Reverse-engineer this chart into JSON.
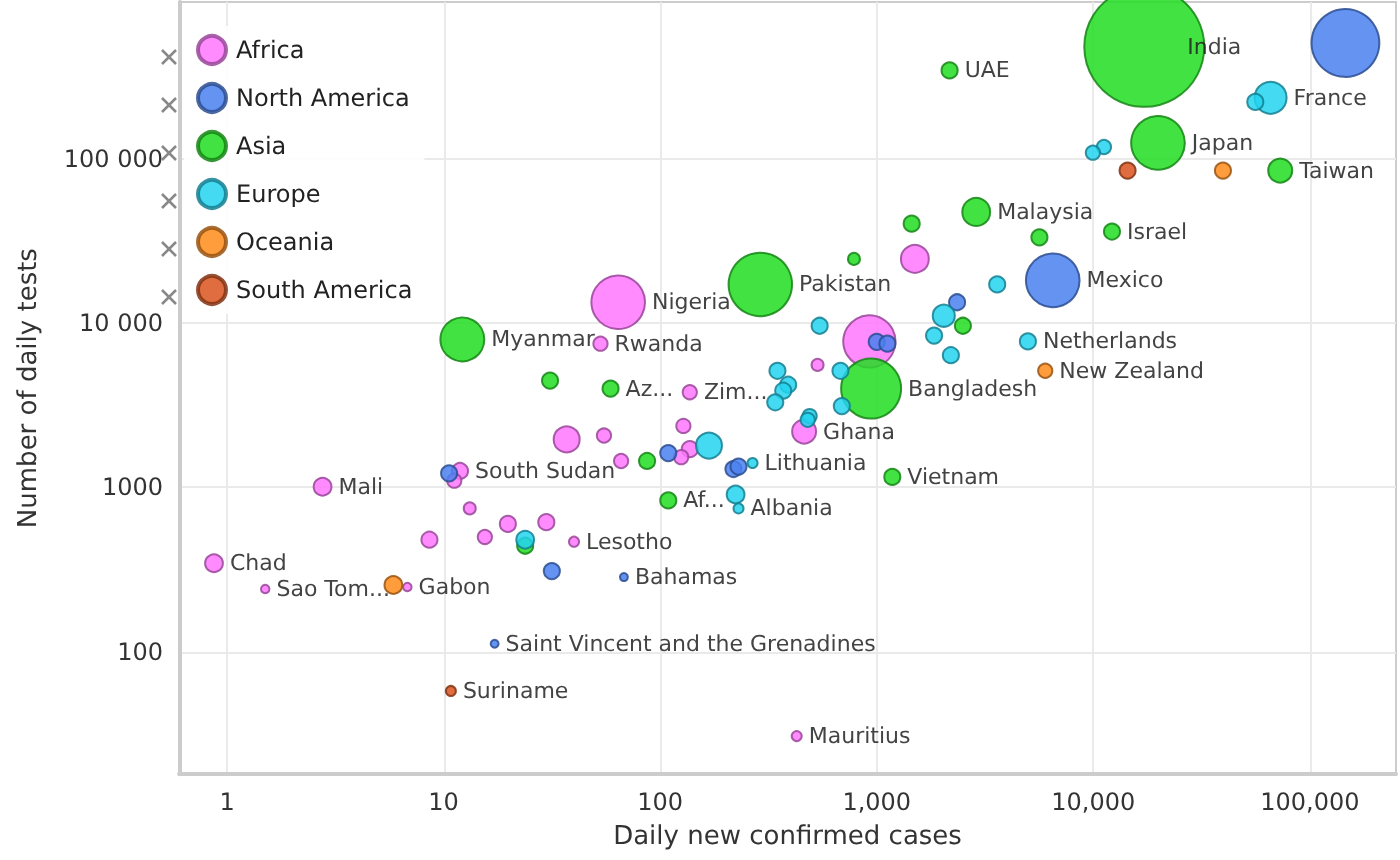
{
  "chart_data": {
    "type": "bubble",
    "xlabel": "Daily new confirmed cases",
    "ylabel": "Number of daily tests",
    "log": "xy",
    "grid": true,
    "legend": "top left",
    "marker": "circle",
    "xlim": [
      0.6,
      250000
    ],
    "ylim": [
      18,
      900000
    ],
    "xticks": [
      1,
      10,
      100,
      {
        "value": 1000,
        "label": "1,000"
      },
      {
        "value": 10000,
        "label": "10,000"
      },
      {
        "value": 100000,
        "label": "100,000"
      }
    ],
    "yticks": [
      100,
      1000,
      {
        "value": 10000,
        "label": "10 000"
      },
      {
        "value": 100000,
        "label": "100 000"
      }
    ],
    "series": [
      {
        "name": "Africa",
        "color": "#ff77ff",
        "x": [
          64,
          53,
          137,
          462,
          925,
          1500,
          533,
          2.76,
          0.87,
          1.5,
          6.8,
          11.9,
          11.2,
          13.2,
          8.6,
          15.5,
          19.8,
          29.8,
          40,
          37,
          55,
          66,
          128,
          137,
          125,
          427
        ],
        "values": [
          13400,
          7500,
          3800,
          2190,
          7740,
          24600,
          5570,
          1010,
          346,
          241,
          248,
          1260,
          1100,
          746,
          481,
          500,
          600,
          615,
          468,
          1960,
          2070,
          1450,
          2370,
          1710,
          1530,
          30.7
        ],
        "sizes": [
          0.2,
          0.014,
          0.014,
          0.04,
          0.19,
          0.054,
          0.01,
          0.022,
          0.022,
          0.005,
          0.005,
          0.018,
          0.014,
          0.01,
          0.018,
          0.014,
          0.018,
          0.018,
          0.007,
          0.047,
          0.014,
          0.014,
          0.014,
          0.018,
          0.014,
          0.007
        ]
      },
      {
        "name": "North America",
        "color": "#4a80f0",
        "x": [
          146000,
          6500,
          2350,
          1000,
          1120,
          10.6,
          109,
          31.6,
          68,
          17.2,
          218,
          230
        ],
        "values": [
          507000,
          18200,
          13400,
          7700,
          7500,
          1220,
          1620,
          310,
          285,
          112,
          1295,
          1340
        ],
        "sizes": [
          0.32,
          0.2,
          0.018,
          0.018,
          0.018,
          0.018,
          0.018,
          0.018,
          0.0044,
          0.0044,
          0.018,
          0.018
        ]
      },
      {
        "name": "Asia",
        "color": "#22dd22",
        "x": [
          17200,
          2170,
          19900,
          73000,
          2880,
          1450,
          12200,
          5640,
          785,
          290,
          942,
          2500,
          12.2,
          31,
          59,
          87,
          109,
          23.8,
          1180
        ],
        "values": [
          480000,
          345000,
          125000,
          84800,
          47500,
          40300,
          36100,
          33300,
          24600,
          17200,
          4000,
          9640,
          7960,
          4470,
          4000,
          1450,
          834,
          442,
          1160
        ],
        "sizes": [
          1,
          0.018,
          0.2,
          0.04,
          0.054,
          0.018,
          0.018,
          0.018,
          0.01,
          0.28,
          0.25,
          0.018,
          0.134,
          0.018,
          0.018,
          0.018,
          0.018,
          0.018,
          0.018
        ]
      },
      {
        "name": "Europe",
        "color": "#22d4f0",
        "x": [
          65900,
          56000,
          11200,
          9960,
          3600,
          2040,
          545,
          1840,
          2200,
          680,
          4990,
          348,
          390,
          370,
          340,
          490,
          690,
          480,
          168,
          267,
          223,
          230,
          23.8
        ],
        "values": [
          235000,
          222000,
          118000,
          109000,
          17200,
          11100,
          9640,
          8400,
          6380,
          5130,
          7740,
          5130,
          4220,
          3880,
          3300,
          2720,
          3130,
          2580,
          1800,
          1410,
          906,
          746,
          481
        ],
        "sizes": [
          0.071,
          0.018,
          0.014,
          0.014,
          0.018,
          0.034,
          0.018,
          0.018,
          0.018,
          0.018,
          0.018,
          0.018,
          0.018,
          0.018,
          0.018,
          0.014,
          0.018,
          0.014,
          0.047,
          0.007,
          0.022,
          0.007,
          0.022
        ]
      },
      {
        "name": "Oceania",
        "color": "#ff8c1a",
        "x": [
          39700,
          6000,
          5.86
        ],
        "values": [
          84800,
          5130,
          255
        ],
        "sizes": [
          0.018,
          0.014,
          0.022
        ]
      },
      {
        "name": "South America",
        "color": "#d9531e",
        "x": [
          14400,
          10.8
        ],
        "values": [
          84800,
          57.8
        ],
        "sizes": [
          0.018,
          0.007
        ]
      }
    ],
    "annotations": [
      {
        "text": "Nigeria",
        "x": 64,
        "y": 13400
      },
      {
        "text": "Rwanda",
        "x": 53,
        "y": 7500
      },
      {
        "text": "Zim...",
        "x": 137,
        "y": 3800
      },
      {
        "text": "Ghana",
        "x": 462,
        "y": 2190
      },
      {
        "text": "Mali",
        "x": 2.76,
        "y": 1010
      },
      {
        "text": "Chad",
        "x": 0.87,
        "y": 346
      },
      {
        "text": "Sao Tom...",
        "x": 1.5,
        "y": 241
      },
      {
        "text": "Gabon",
        "x": 6.8,
        "y": 248
      },
      {
        "text": "South Sudan",
        "x": 11.9,
        "y": 1260
      },
      {
        "text": "Lesotho",
        "x": 40,
        "y": 468
      },
      {
        "text": "Mauritius",
        "x": 427,
        "y": 30.7
      },
      {
        "text": "Mexico",
        "x": 6500,
        "y": 18200
      },
      {
        "text": "Bahamas",
        "x": 68,
        "y": 285
      },
      {
        "text": "Saint Vincent and the Grenadines",
        "x": 17.2,
        "y": 112
      },
      {
        "text": "India",
        "x": 17200,
        "y": 480000
      },
      {
        "text": "UAE",
        "x": 2170,
        "y": 345000
      },
      {
        "text": "Japan",
        "x": 19900,
        "y": 125000
      },
      {
        "text": "Taiwan",
        "x": 73000,
        "y": 84800
      },
      {
        "text": "Malaysia",
        "x": 2880,
        "y": 47500
      },
      {
        "text": "Israel",
        "x": 12200,
        "y": 36100
      },
      {
        "text": "Pakistan",
        "x": 290,
        "y": 17200
      },
      {
        "text": "Bangladesh",
        "x": 942,
        "y": 4000
      },
      {
        "text": "Myanmar",
        "x": 12.2,
        "y": 7960
      },
      {
        "text": "Az...",
        "x": 59,
        "y": 4000
      },
      {
        "text": "Af...",
        "x": 109,
        "y": 834
      },
      {
        "text": "Vietnam",
        "x": 1180,
        "y": 1160
      },
      {
        "text": "France",
        "x": 65900,
        "y": 235000
      },
      {
        "text": "Netherlands",
        "x": 4990,
        "y": 7740
      },
      {
        "text": "Lithuania",
        "x": 267,
        "y": 1410
      },
      {
        "text": "Albania",
        "x": 230,
        "y": 746
      },
      {
        "text": "New Zealand",
        "x": 6000,
        "y": 5130
      },
      {
        "text": "Suriname",
        "x": 10.8,
        "y": 57.8
      }
    ]
  }
}
